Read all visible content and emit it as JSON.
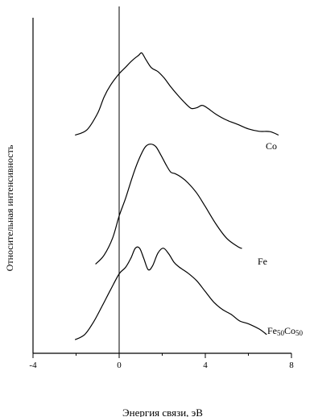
{
  "chart_data": {
    "type": "line",
    "title": "",
    "xlabel": "Энергия связи, эВ",
    "ylabel": "Относительная интенсивность",
    "xlim": [
      -4,
      8
    ],
    "ylim": [
      0,
      1
    ],
    "x_ticks": [
      -4,
      0,
      4,
      8
    ],
    "x_tick_labels": [
      "-4",
      "0",
      "4",
      "8"
    ],
    "grid": false,
    "vertical_reference_line_x": 0,
    "series": [
      {
        "name": "Co",
        "label_main": "Co",
        "label_sub": "",
        "x": [
          -2.05,
          -1.5,
          -1.0,
          -0.7,
          -0.4,
          0.0,
          0.3,
          0.6,
          0.9,
          1.05,
          1.25,
          1.5,
          1.8,
          2.1,
          2.4,
          2.75,
          3.1,
          3.35,
          3.6,
          3.85,
          4.1,
          4.5,
          5.0,
          5.5,
          6.0,
          6.5,
          7.0,
          7.4
        ],
        "y": [
          0.629,
          0.644,
          0.692,
          0.739,
          0.773,
          0.806,
          0.825,
          0.844,
          0.859,
          0.866,
          0.846,
          0.823,
          0.812,
          0.793,
          0.768,
          0.742,
          0.719,
          0.706,
          0.708,
          0.715,
          0.707,
          0.689,
          0.672,
          0.66,
          0.647,
          0.64,
          0.639,
          0.629
        ]
      },
      {
        "name": "Fe",
        "label_main": "Fe",
        "label_sub": "",
        "x": [
          -1.1,
          -0.7,
          -0.3,
          0.0,
          0.3,
          0.6,
          0.9,
          1.2,
          1.45,
          1.7,
          1.95,
          2.2,
          2.4,
          2.6,
          2.9,
          3.2,
          3.6,
          4.0,
          4.5,
          5.0,
          5.5,
          5.7
        ],
        "y": [
          0.257,
          0.283,
          0.333,
          0.396,
          0.447,
          0.506,
          0.557,
          0.594,
          0.603,
          0.596,
          0.57,
          0.541,
          0.522,
          0.518,
          0.507,
          0.491,
          0.462,
          0.423,
          0.372,
          0.331,
          0.308,
          0.302
        ]
      },
      {
        "name": "Fe50Co50",
        "label_main": "Fe",
        "label_sub": "50",
        "label_main2": "Co",
        "label_sub2": "50",
        "x": [
          -2.05,
          -1.6,
          -1.2,
          -0.8,
          -0.4,
          0.0,
          0.3,
          0.55,
          0.75,
          0.95,
          1.15,
          1.35,
          1.55,
          1.8,
          2.05,
          2.3,
          2.55,
          2.8,
          3.2,
          3.6,
          4.0,
          4.4,
          4.8,
          5.2,
          5.6,
          6.0,
          6.5,
          6.85
        ],
        "y": [
          0.039,
          0.054,
          0.089,
          0.135,
          0.183,
          0.229,
          0.248,
          0.275,
          0.303,
          0.303,
          0.272,
          0.241,
          0.252,
          0.289,
          0.303,
          0.287,
          0.262,
          0.248,
          0.231,
          0.209,
          0.178,
          0.147,
          0.126,
          0.112,
          0.093,
          0.085,
          0.07,
          0.054
        ]
      }
    ]
  }
}
